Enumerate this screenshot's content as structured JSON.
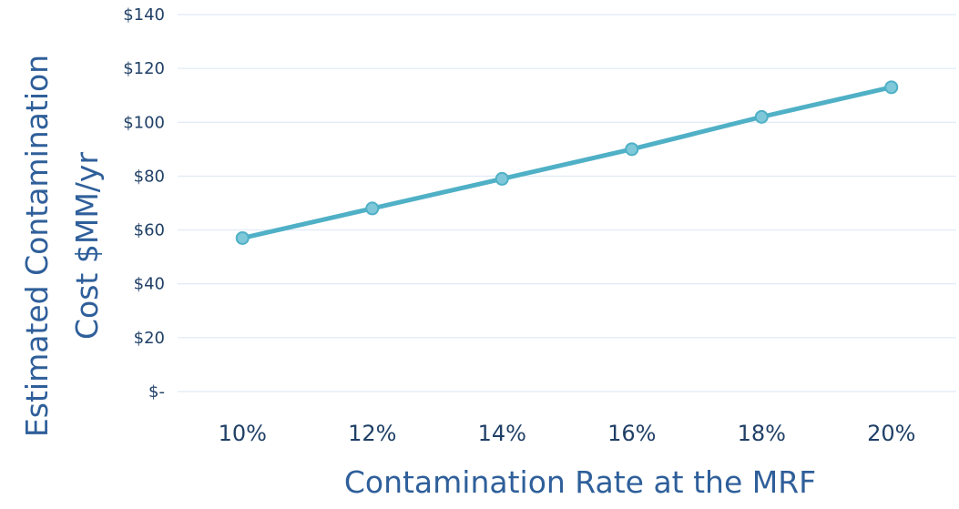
{
  "chart_data": {
    "type": "line",
    "title": "",
    "ylabel": "Estimated Contamination Cost $MM/yr",
    "ylabel_lines": [
      "Estimated Contamination",
      "Cost $MM/yr"
    ],
    "xlabel": "Contamination Rate at the MRF",
    "categories": [
      "10%",
      "12%",
      "14%",
      "16%",
      "18%",
      "20%"
    ],
    "series": [
      {
        "name": "",
        "values": [
          57,
          68,
          79,
          90,
          102,
          113
        ]
      }
    ],
    "ylim": [
      0,
      140
    ],
    "yticks": [
      {
        "value": 0,
        "label": "$-"
      },
      {
        "value": 20,
        "label": "$20"
      },
      {
        "value": 40,
        "label": "$40"
      },
      {
        "value": 60,
        "label": "$60"
      },
      {
        "value": 80,
        "label": "$80"
      },
      {
        "value": 100,
        "label": "$100"
      },
      {
        "value": 120,
        "label": "$120"
      },
      {
        "value": 140,
        "label": "$140"
      }
    ],
    "grid": true,
    "colors": {
      "line": "#4fb0c6",
      "marker": "#7ec8da",
      "grid": "#d9e6f5",
      "tick_text": "#1f3f66",
      "axis_title": "#2f5f9a"
    }
  }
}
